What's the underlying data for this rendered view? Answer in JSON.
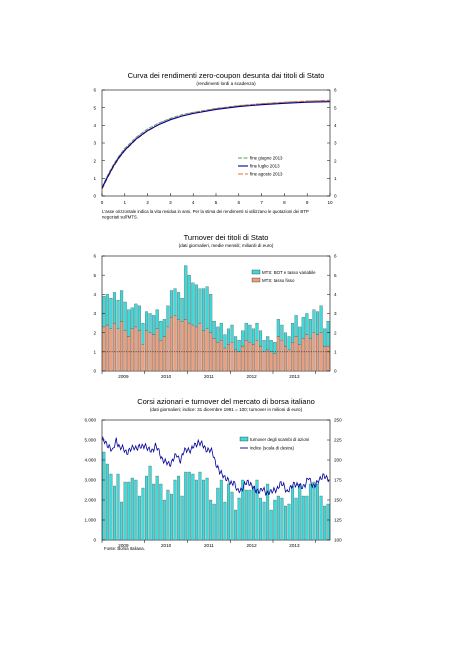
{
  "charts": [
    {
      "title": "Curva dei rendimenti zero-coupon desunta dai titoli di Stato",
      "subtitle": "(rendimenti lordi a scadenza)",
      "note_line1": "L'asse orizzontale indica la vita residua in anni. Per la stima dei rendimenti si utilizzano le quotazioni dei BTP",
      "note_line2": "negoziati sull'MTS."
    },
    {
      "title": "Turnover dei titoli di Stato",
      "subtitle": "(dati giornalieri, medie mensili; miliardi di euro)"
    },
    {
      "title": "Corsi azionari e turnover del mercato di borsa italiano",
      "subtitle": "(dati giornalieri; indice: 31 dicembre 1991 = 100; turnover in milioni di euro)",
      "source": "Fonte: Borsa Italiana."
    }
  ],
  "chart_data": [
    {
      "type": "line",
      "title": "Curva dei rendimenti zero-coupon desunta dai titoli di Stato",
      "subtitle": "(rendimenti lordi a scadenza)",
      "xlim": [
        0,
        10
      ],
      "ylim": [
        0,
        6
      ],
      "x_ticks": [
        0,
        1,
        2,
        3,
        4,
        5,
        6,
        7,
        8,
        9,
        10
      ],
      "y_ticks": [
        0,
        1,
        2,
        3,
        4,
        5,
        6
      ],
      "grid": false,
      "legend": "right",
      "x": [
        0,
        0.25,
        0.5,
        0.75,
        1,
        1.5,
        2,
        2.5,
        3,
        3.5,
        4,
        5,
        6,
        7,
        8,
        9,
        10
      ],
      "series": [
        {
          "name": "fine giugno 2013",
          "color": "#5a9e5a",
          "dash": "4,1.5",
          "values": [
            0.5,
            1.18,
            1.78,
            2.28,
            2.7,
            3.33,
            3.8,
            4.14,
            4.4,
            4.6,
            4.74,
            4.96,
            5.12,
            5.23,
            5.31,
            5.37,
            5.4
          ]
        },
        {
          "name": "fine luglio 2013",
          "color": "#000099",
          "dash": "",
          "values": [
            0.44,
            1.1,
            1.69,
            2.19,
            2.6,
            3.23,
            3.7,
            4.05,
            4.32,
            4.52,
            4.67,
            4.9,
            5.06,
            5.17,
            5.25,
            5.31,
            5.34
          ]
        },
        {
          "name": "fine agosto 2013",
          "color": "#e07030",
          "dash": "5,2",
          "values": [
            0.37,
            1.03,
            1.63,
            2.14,
            2.56,
            3.2,
            3.68,
            4.04,
            4.32,
            4.53,
            4.69,
            4.93,
            5.1,
            5.22,
            5.31,
            5.37,
            5.42
          ]
        },
        {
          "name": "",
          "color": "#cc66cc",
          "dash": "1,1.5",
          "values": [
            0.48,
            1.16,
            1.76,
            2.26,
            2.68,
            3.31,
            3.78,
            4.12,
            4.38,
            4.58,
            4.73,
            4.95,
            5.11,
            5.22,
            5.3,
            5.36,
            5.39
          ]
        }
      ]
    },
    {
      "type": "bar",
      "title": "Turnover dei titoli di Stato",
      "subtitle": "(dati giornalieri, medie mensili; miliardi di euro)",
      "ylim": [
        0,
        6
      ],
      "y_ticks": [
        0,
        1,
        2,
        3,
        4,
        5,
        6
      ],
      "x_labels": [
        "2009",
        "2010",
        "2011",
        "2012",
        "2013"
      ],
      "grid": false,
      "legend": "top-right",
      "series": [
        {
          "name": "MTS: BOT e tasso variabile",
          "color": "#40d8d8",
          "stacked": true
        },
        {
          "name": "MTS: tasso fisso",
          "color": "#e8a080",
          "stacked": true
        }
      ],
      "total": [
        3.9,
        4.0,
        3.8,
        4.1,
        3.7,
        4.2,
        3.6,
        3.2,
        3.3,
        3.5,
        3.4,
        2.5,
        3.1,
        3.0,
        2.9,
        3.2,
        2.6,
        2.7,
        3.4,
        4.2,
        4.3,
        4.1,
        3.8,
        5.5,
        5.0,
        4.6,
        4.5,
        4.3,
        4.3,
        4.4,
        4.0,
        2.6,
        2.3,
        2.5,
        1.9,
        2.2,
        2.4,
        1.8,
        1.6,
        2.1,
        2.5,
        2.4,
        2.2,
        2.5,
        2.1,
        1.6,
        1.8,
        1.6,
        1.5,
        2.7,
        2.4,
        2.0,
        1.8,
        2.5,
        2.9,
        2.3,
        2.8,
        3.0,
        2.7,
        3.2,
        3.1,
        3.4,
        2.2,
        2.6
      ],
      "fixed": [
        2.3,
        2.4,
        2.2,
        2.5,
        2.2,
        2.6,
        2.1,
        1.8,
        2.2,
        2.3,
        2.1,
        1.4,
        2.1,
        2.0,
        1.9,
        2.2,
        1.6,
        1.8,
        2.3,
        2.8,
        2.9,
        2.7,
        2.6,
        2.7,
        2.5,
        2.4,
        2.3,
        2.5,
        2.1,
        2.2,
        2.0,
        1.7,
        1.5,
        1.6,
        1.2,
        1.4,
        1.5,
        1.1,
        1.0,
        1.3,
        1.6,
        1.5,
        1.4,
        1.6,
        1.3,
        1.0,
        1.1,
        1.0,
        0.9,
        1.8,
        1.6,
        1.3,
        1.1,
        1.5,
        1.8,
        1.4,
        1.7,
        1.9,
        1.7,
        2.0,
        1.9,
        2.0,
        1.3,
        1.3
      ]
    },
    {
      "type": "bar",
      "title": "Corsi azionari e turnover del mercato di borsa italiano",
      "subtitle": "(dati giornalieri; indice: 31 dicembre 1991 = 100; turnover in milioni di euro)",
      "ylim_left": [
        0,
        6000
      ],
      "ylim_right": [
        100,
        250
      ],
      "y_ticks_left": [
        "0",
        "1.000",
        "2.000",
        "3.000",
        "4.000",
        "5.000",
        "6.000"
      ],
      "y_ticks_right": [
        "100",
        "125",
        "150",
        "175",
        "200",
        "225",
        "250"
      ],
      "x_labels": [
        "2009",
        "2010",
        "2011",
        "2012",
        "2013"
      ],
      "grid": false,
      "legend": "right",
      "series": [
        {
          "name": "turnover degli scambi di azioni",
          "color": "#40d8d8",
          "axis": "left",
          "values": [
            4400,
            3800,
            3300,
            2700,
            3300,
            1900,
            2900,
            2900,
            3100,
            3000,
            2200,
            2600,
            3200,
            3700,
            2800,
            3200,
            2800,
            2000,
            2500,
            2300,
            3000,
            3200,
            2200,
            3400,
            3400,
            3300,
            3000,
            3400,
            3000,
            3100,
            2000,
            1800,
            2600,
            3000,
            1900,
            2800,
            2400,
            1500,
            2100,
            3000,
            2500,
            2500,
            2700,
            3000,
            2100,
            1900,
            2800,
            1500,
            2000,
            2200,
            2100,
            1700,
            1800,
            2700,
            2100,
            2800,
            2200,
            2200,
            2800,
            2900,
            2800,
            2200,
            1700,
            1800
          ]
        },
        {
          "name": "indice (scala di destra)",
          "color": "#000099",
          "axis": "right",
          "values": [
            225,
            221,
            218,
            210,
            226,
            215,
            214,
            210,
            212,
            217,
            215,
            216,
            220,
            212,
            212,
            218,
            210,
            201,
            196,
            195,
            201,
            206,
            200,
            210,
            214,
            212,
            218,
            223,
            219,
            215,
            212,
            210,
            196,
            184,
            182,
            176,
            170,
            174,
            160,
            163,
            169,
            172,
            170,
            160,
            162,
            164,
            158,
            161,
            160,
            164,
            170,
            168,
            161,
            164,
            172,
            168,
            166,
            170,
            177,
            170,
            168,
            175,
            182,
            176
          ]
        }
      ]
    }
  ]
}
